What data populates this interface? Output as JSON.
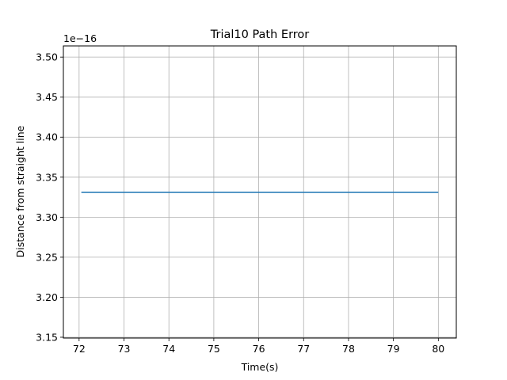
{
  "chart_data": {
    "type": "line",
    "title": "Trial10 Path Error",
    "xlabel": "Time(s)",
    "ylabel": "Distance from straight line",
    "offset_label": "1e−16",
    "xlim": [
      71.65,
      80.4
    ],
    "ylim": [
      3.149,
      3.514
    ],
    "x_ticks": [
      72,
      73,
      74,
      75,
      76,
      77,
      78,
      79,
      80
    ],
    "y_ticks": [
      3.15,
      3.2,
      3.25,
      3.3,
      3.35,
      3.4,
      3.45,
      3.5
    ],
    "y_tick_labels": [
      "3.15",
      "3.20",
      "3.25",
      "3.30",
      "3.35",
      "3.40",
      "3.45",
      "3.50"
    ],
    "grid": true,
    "series": [
      {
        "color": "#1f77b4",
        "x": [
          72.05,
          73,
          74,
          75,
          76,
          77,
          78,
          79,
          80
        ],
        "y": [
          3.331,
          3.331,
          3.331,
          3.331,
          3.331,
          3.331,
          3.331,
          3.331,
          3.331
        ]
      }
    ]
  }
}
